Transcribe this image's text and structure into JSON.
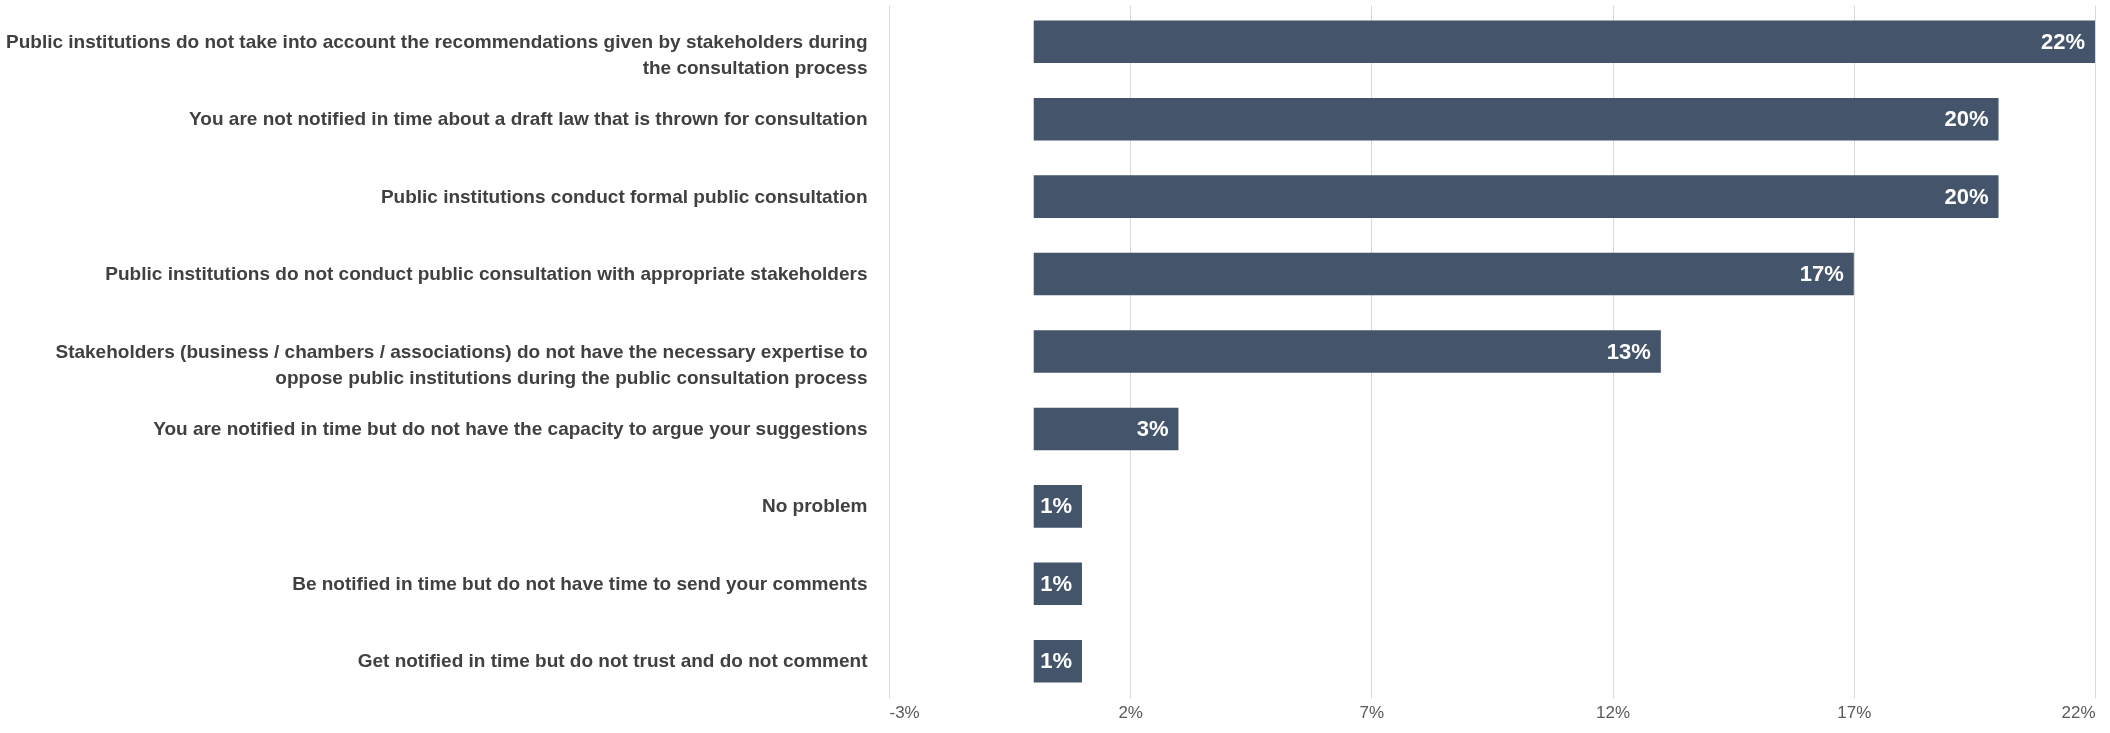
{
  "chart_data": {
    "type": "bar",
    "orientation": "horizontal",
    "categories": [
      "Public institutions do not take into account the recommendations given by stakeholders during the consultation process",
      "You are not notified in time about a draft law that is thrown for consultation",
      "Public institutions conduct formal public consultation",
      "Public institutions do not conduct public consultation with appropriate stakeholders",
      "Stakeholders (business / chambers / associations) do not have the necessary expertise to oppose public institutions during the public consultation process",
      "You are notified in time but do not have the capacity to argue your suggestions",
      "No problem",
      "Be notified in time but do not have time to send your comments",
      "Get notified in time but do not trust and do not comment"
    ],
    "values": [
      22,
      20,
      20,
      17,
      13,
      3,
      1,
      1,
      1
    ],
    "value_labels": [
      "22%",
      "20%",
      "20%",
      "17%",
      "13%",
      "3%",
      "1%",
      "1%",
      "1%"
    ],
    "color": "#44546a",
    "xlim": [
      -3,
      22
    ],
    "xticks": [
      {
        "value": -3,
        "label": "-3%"
      },
      {
        "value": 2,
        "label": "2%"
      },
      {
        "value": 7,
        "label": "7%"
      },
      {
        "value": 12,
        "label": "12%"
      },
      {
        "value": 17,
        "label": "17%"
      },
      {
        "value": 22,
        "label": "22%"
      }
    ],
    "grid": "x"
  }
}
